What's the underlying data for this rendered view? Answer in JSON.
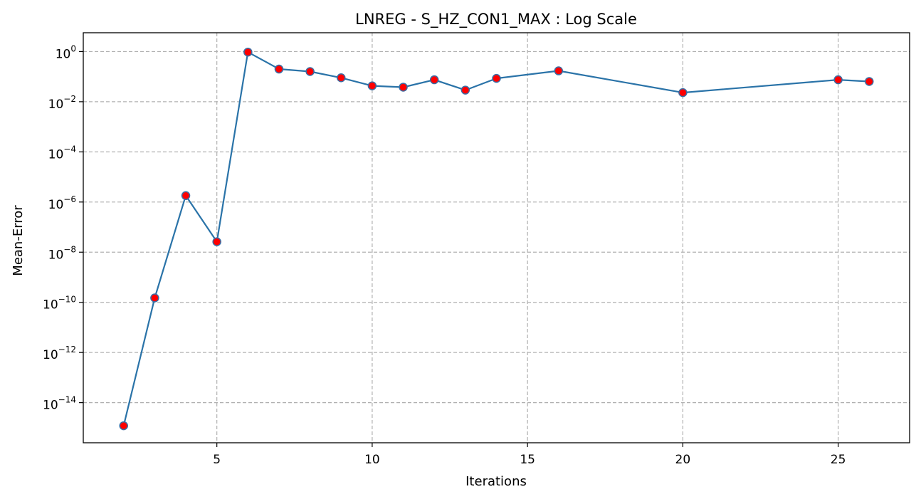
{
  "chart_data": {
    "type": "line",
    "title": "LNREG - S_HZ_CON1_MAX : Log Scale",
    "xlabel": "Iterations",
    "ylabel": "Mean-Error",
    "yscale": "log",
    "grid": true,
    "xlim": [
      0.7,
      27.3
    ],
    "ylim_exponent": [
      -15.6,
      0.75
    ],
    "x_ticks": [
      5,
      10,
      15,
      20,
      25
    ],
    "x_tick_labels": [
      "5",
      "10",
      "15",
      "20",
      "25"
    ],
    "y_ticks": [
      1e-14,
      1e-12,
      1e-10,
      1e-08,
      1e-06,
      0.0001,
      0.01,
      1
    ],
    "y_tick_labels": [
      {
        "base": "10",
        "exp": "−14"
      },
      {
        "base": "10",
        "exp": "−12"
      },
      {
        "base": "10",
        "exp": "−10"
      },
      {
        "base": "10",
        "exp": "−8"
      },
      {
        "base": "10",
        "exp": "−6"
      },
      {
        "base": "10",
        "exp": "−4"
      },
      {
        "base": "10",
        "exp": "−2"
      },
      {
        "base": "10",
        "exp": "0"
      }
    ],
    "series": [
      {
        "line_color": "#2a73a8",
        "marker_face": "#ff0000",
        "marker_edge": "#3a6ea5",
        "x": [
          2,
          3,
          4,
          5,
          6,
          7,
          8,
          9,
          10,
          11,
          12,
          13,
          14,
          16,
          20,
          25,
          26
        ],
        "values": [
          1.2e-15,
          1.5e-10,
          1.8e-06,
          2.6e-08,
          0.95,
          0.2,
          0.16,
          0.09,
          0.043,
          0.038,
          0.075,
          0.029,
          0.085,
          0.17,
          0.023,
          0.075,
          0.064
        ]
      }
    ]
  }
}
